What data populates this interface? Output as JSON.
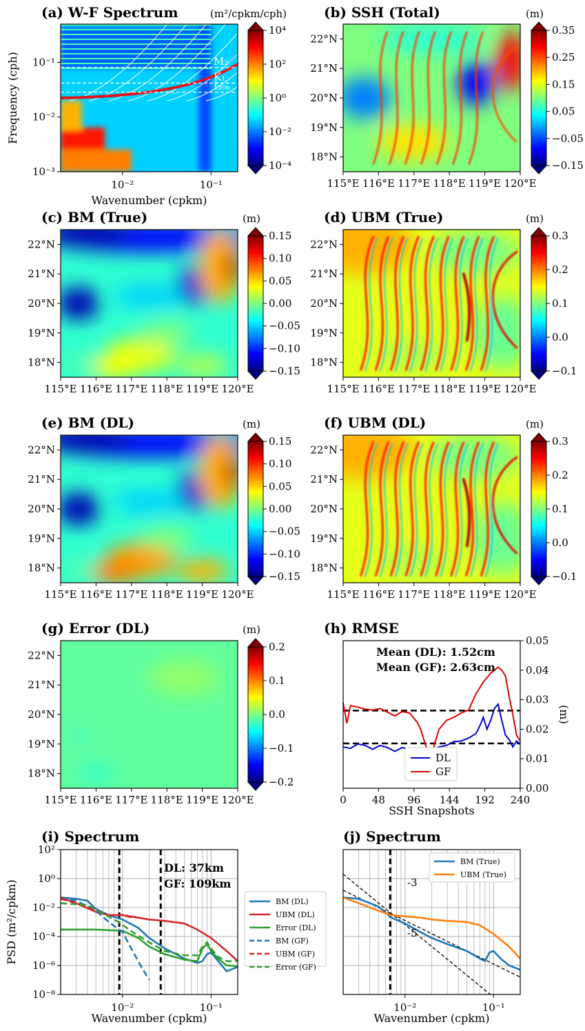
{
  "colors": {
    "jet": [
      "#00007f",
      "#0000ff",
      "#007fff",
      "#00ffff",
      "#7fff7f",
      "#ffff00",
      "#ff7f00",
      "#ff0000",
      "#7f0000"
    ],
    "blue": "#1f77b4",
    "orange": "#ff7f0e",
    "green": "#2ca02c",
    "red": "#d62728",
    "rmse_dl": "#0000cc",
    "rmse_gf": "#e00000"
  },
  "chart_data": [
    {
      "id": "a",
      "type": "heatmap",
      "title": "(a) W-F Spectrum",
      "unit": "(m²/cpkm/cph)",
      "xlabel": "Wavenumber (cpkm)",
      "ylabel": "Frequency (cph)",
      "xlim": [
        0.002,
        0.2
      ],
      "ylim": [
        0.001,
        0.5
      ],
      "xscale": "log",
      "yscale": "log",
      "x_ticks": [
        "10⁻²",
        "10⁻¹"
      ],
      "y_ticks": [
        "10⁻³",
        "10⁻²",
        "10⁻¹"
      ],
      "colorbar": {
        "scale": "log",
        "range": [
          0.0001,
          10000
        ],
        "ticks": [
          "10⁴",
          "10²",
          "10⁰",
          "10⁻²",
          "10⁻⁴"
        ]
      },
      "lines": [
        {
          "label": "M₂",
          "frequency": 0.0805
        },
        {
          "label": "K₁",
          "frequency": 0.0418
        },
        {
          "label": "I₂₀ₙ",
          "frequency": 0.0285
        }
      ]
    },
    {
      "id": "b",
      "type": "heatmap",
      "title": "(b) SSH (Total)",
      "unit": "(m)",
      "x_ticks": [
        "115°E",
        "116°E",
        "117°E",
        "118°E",
        "119°E",
        "120°E"
      ],
      "y_ticks": [
        "22°N",
        "21°N",
        "20°N",
        "19°N",
        "18°N"
      ],
      "colorbar": {
        "range": [
          -0.15,
          0.35
        ],
        "ticks": [
          "0.35",
          "0.25",
          "0.15",
          "0.05",
          "−0.05",
          "−0.15"
        ]
      }
    },
    {
      "id": "c",
      "type": "heatmap",
      "title": "(c) BM (True)",
      "unit": "(m)",
      "x_ticks": [
        "115°E",
        "116°E",
        "117°E",
        "118°E",
        "119°E",
        "120°E"
      ],
      "y_ticks": [
        "22°N",
        "21°N",
        "20°N",
        "19°N",
        "18°N"
      ],
      "colorbar": {
        "range": [
          -0.15,
          0.15
        ],
        "ticks": [
          "0.15",
          "0.10",
          "0.05",
          "0.00",
          "−0.05",
          "−0.10",
          "−0.15"
        ]
      }
    },
    {
      "id": "d",
      "type": "heatmap",
      "title": "(d) UBM (True)",
      "unit": "(m)",
      "x_ticks": [
        "115°E",
        "116°E",
        "117°E",
        "118°E",
        "119°E",
        "120°E"
      ],
      "y_ticks": [
        "22°N",
        "21°N",
        "20°N",
        "19°N",
        "18°N"
      ],
      "colorbar": {
        "range": [
          -0.1,
          0.3
        ],
        "ticks": [
          "0.3",
          "0.2",
          "0.1",
          "0.0",
          "−0.1"
        ]
      }
    },
    {
      "id": "e",
      "type": "heatmap",
      "title": "(e) BM (DL)",
      "unit": "(m)",
      "x_ticks": [
        "115°E",
        "116°E",
        "117°E",
        "118°E",
        "119°E",
        "120°E"
      ],
      "y_ticks": [
        "22°N",
        "21°N",
        "20°N",
        "19°N",
        "18°N"
      ],
      "colorbar": {
        "range": [
          -0.15,
          0.15
        ],
        "ticks": [
          "0.15",
          "0.10",
          "0.05",
          "0.00",
          "−0.05",
          "−0.10",
          "−0.15"
        ]
      }
    },
    {
      "id": "f",
      "type": "heatmap",
      "title": "(f) UBM (DL)",
      "unit": "(m)",
      "x_ticks": [
        "115°E",
        "116°E",
        "117°E",
        "118°E",
        "119°E",
        "120°E"
      ],
      "y_ticks": [
        "22°N",
        "21°N",
        "20°N",
        "19°N",
        "18°N"
      ],
      "colorbar": {
        "range": [
          -0.1,
          0.3
        ],
        "ticks": [
          "0.3",
          "0.2",
          "0.1",
          "0.0",
          "−0.1"
        ]
      }
    },
    {
      "id": "g",
      "type": "heatmap",
      "title": "(g) Error (DL)",
      "unit": "(m)",
      "x_ticks": [
        "115°E",
        "116°E",
        "117°E",
        "118°E",
        "119°E",
        "120°E"
      ],
      "y_ticks": [
        "22°N",
        "21°N",
        "20°N",
        "19°N",
        "18°N"
      ],
      "colorbar": {
        "range": [
          -0.2,
          0.2
        ],
        "ticks": [
          "0.2",
          "0.1",
          "0.0",
          "−0.1",
          "−0.2"
        ]
      }
    },
    {
      "id": "h",
      "type": "line",
      "title": "(h) RMSE",
      "xlabel": "SSH Snapshots",
      "ylabel": "(m)",
      "xlim": [
        0,
        240
      ],
      "ylim": [
        0,
        0.05
      ],
      "x_ticks": [
        "0",
        "48",
        "96",
        "144",
        "192",
        "240"
      ],
      "y_ticks": [
        "0.00",
        "0.01",
        "0.02",
        "0.03",
        "0.04",
        "0.05"
      ],
      "annotations": [
        "Mean (DL): 1.52cm",
        "Mean (GF): 2.63cm"
      ],
      "hlines": [
        0.0152,
        0.0263
      ],
      "series": [
        {
          "name": "DL",
          "x": [
            0,
            10,
            20,
            30,
            40,
            50,
            60,
            70,
            80,
            90,
            100,
            110,
            120,
            130,
            140,
            150,
            160,
            170,
            180,
            185,
            190,
            195,
            200,
            205,
            210,
            215,
            220,
            225,
            230,
            235,
            240
          ],
          "values": [
            0.014,
            0.0135,
            0.015,
            0.0145,
            0.0132,
            0.0145,
            0.0138,
            0.0125,
            0.0138,
            0.013,
            0.012,
            0.0112,
            0.013,
            0.014,
            0.0145,
            0.0158,
            0.016,
            0.017,
            0.0185,
            0.021,
            0.024,
            0.02,
            0.023,
            0.027,
            0.0285,
            0.023,
            0.018,
            0.0165,
            0.014,
            0.016,
            0.015
          ]
        },
        {
          "name": "GF",
          "x": [
            0,
            5,
            10,
            20,
            30,
            40,
            50,
            60,
            70,
            80,
            90,
            100,
            105,
            110,
            115,
            120,
            125,
            130,
            140,
            150,
            160,
            170,
            180,
            190,
            200,
            210,
            215,
            220,
            225,
            230,
            235,
            240
          ],
          "values": [
            0.029,
            0.022,
            0.028,
            0.0275,
            0.0268,
            0.0265,
            0.027,
            0.0258,
            0.0245,
            0.026,
            0.0255,
            0.0225,
            0.02,
            0.016,
            0.012,
            0.011,
            0.016,
            0.02,
            0.023,
            0.024,
            0.0255,
            0.0265,
            0.032,
            0.036,
            0.039,
            0.041,
            0.04,
            0.038,
            0.031,
            0.025,
            0.018,
            0.016
          ]
        }
      ]
    },
    {
      "id": "i",
      "type": "line",
      "title": "(i) Spectrum",
      "xlabel": "Wavenumber (cpkm)",
      "ylabel": "PSD (m²/cpkm)",
      "xscale": "log",
      "yscale": "log",
      "xlim": [
        0.002,
        0.2
      ],
      "ylim": [
        1e-08,
        100
      ],
      "x_ticks": [
        "10⁻²",
        "10⁻¹"
      ],
      "y_ticks": [
        "10²",
        "10⁰",
        "10⁻²",
        "10⁻⁴",
        "10⁻⁶",
        "10⁻⁸"
      ],
      "annotations": [
        "DL: 37km",
        "GF: 109km"
      ],
      "vlines": [
        0.0092,
        0.027
      ],
      "series": [
        {
          "name": "BM (DL)",
          "style": "solid",
          "x": [
            0.002,
            0.003,
            0.004,
            0.005,
            0.007,
            0.01,
            0.015,
            0.02,
            0.03,
            0.05,
            0.07,
            0.08,
            0.09,
            0.1,
            0.12,
            0.15,
            0.2
          ],
          "values": [
            0.05,
            0.04,
            0.03,
            0.008,
            0.003,
            0.0015,
            0.0004,
            8e-05,
            1.5e-05,
            3e-06,
            1.5e-06,
            2e-06,
            6e-06,
            8e-06,
            2e-06,
            4e-07,
            8e-07
          ]
        },
        {
          "name": "UBM (DL)",
          "style": "solid",
          "x": [
            0.002,
            0.003,
            0.005,
            0.007,
            0.01,
            0.015,
            0.02,
            0.03,
            0.05,
            0.07,
            0.1,
            0.15,
            0.2
          ],
          "values": [
            0.05,
            0.02,
            0.005,
            0.003,
            0.003,
            0.002,
            0.0015,
            0.0012,
            0.0008,
            0.0003,
            8e-05,
            1e-05,
            2e-06
          ]
        },
        {
          "name": "Error (DL)",
          "style": "solid",
          "x": [
            0.002,
            0.005,
            0.01,
            0.015,
            0.02,
            0.03,
            0.05,
            0.07,
            0.08,
            0.09,
            0.1,
            0.12,
            0.15,
            0.2
          ],
          "values": [
            0.0003,
            0.0003,
            0.00025,
            8e-05,
            2e-05,
            6e-06,
            2.5e-06,
            2e-06,
            1.5e-05,
            3e-05,
            1e-05,
            3e-06,
            1e-06,
            9e-07
          ]
        },
        {
          "name": "BM (GF)",
          "style": "dashed",
          "x": [
            0.002,
            0.003,
            0.005,
            0.007,
            0.01,
            0.013,
            0.016,
            0.02
          ],
          "values": [
            0.04,
            0.03,
            0.006,
            0.001,
            0.0002,
            1e-05,
            1e-06,
            1e-07
          ]
        },
        {
          "name": "UBM (GF)",
          "style": "dashed",
          "x": [
            0.002,
            0.003,
            0.005,
            0.007,
            0.01,
            0.013
          ],
          "values": [
            0.04,
            0.02,
            0.006,
            0.003,
            0.003,
            0.002
          ]
        },
        {
          "name": "Error (GF)",
          "style": "dashed",
          "x": [
            0.002,
            0.004,
            0.006,
            0.009,
            0.013,
            0.02,
            0.03,
            0.05,
            0.07,
            0.08,
            0.09,
            0.1,
            0.12,
            0.15,
            0.2
          ],
          "values": [
            0.02,
            0.015,
            0.004,
            0.001,
            0.0002,
            4e-05,
            1e-05,
            5e-06,
            5e-06,
            2e-05,
            4e-05,
            1.5e-05,
            4e-06,
            2e-06,
            2e-06
          ]
        }
      ]
    },
    {
      "id": "j",
      "type": "line",
      "title": "(j) Spectrum",
      "xlabel": "Wavenumber (cpkm)",
      "xscale": "log",
      "yscale": "log",
      "xlim": [
        0.002,
        0.2
      ],
      "ylim": [
        1e-08,
        100
      ],
      "x_ticks": [
        "10⁻²",
        "10⁻¹"
      ],
      "annotations": [
        "-3",
        "-5"
      ],
      "vlines": [
        0.0068
      ],
      "series": [
        {
          "name": "BM (True)",
          "style": "solid",
          "x": [
            0.002,
            0.003,
            0.005,
            0.007,
            0.01,
            0.015,
            0.02,
            0.03,
            0.05,
            0.07,
            0.08,
            0.09,
            0.1,
            0.12,
            0.15,
            0.2
          ],
          "values": [
            0.05,
            0.04,
            0.012,
            0.002,
            0.0008,
            0.0002,
            8e-05,
            3e-05,
            1e-05,
            3e-06,
            2e-06,
            8e-06,
            1e-05,
            3e-06,
            1e-06,
            5e-07
          ]
        },
        {
          "name": "UBM (True)",
          "style": "solid",
          "x": [
            0.002,
            0.003,
            0.005,
            0.007,
            0.01,
            0.015,
            0.02,
            0.03,
            0.05,
            0.07,
            0.1,
            0.15,
            0.2
          ],
          "values": [
            0.05,
            0.02,
            0.006,
            0.003,
            0.0025,
            0.002,
            0.0015,
            0.0012,
            0.001,
            0.0006,
            0.00015,
            2e-05,
            3e-06
          ]
        }
      ],
      "reference_lines": [
        {
          "label": "-3",
          "slope": -3,
          "through": [
            0.0068,
            0.004
          ]
        },
        {
          "label": "-5",
          "slope": -5,
          "through": [
            0.0068,
            0.0045
          ]
        }
      ]
    }
  ]
}
